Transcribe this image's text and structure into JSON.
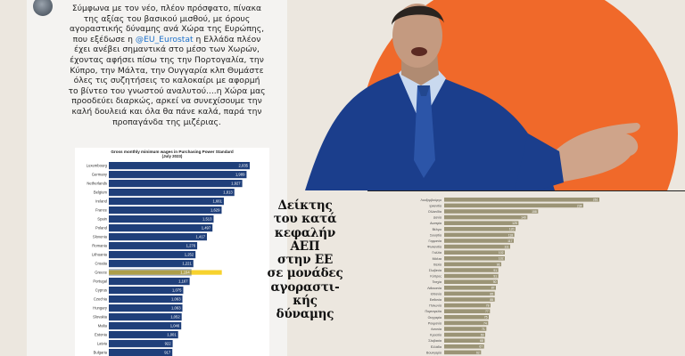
{
  "tweet": {
    "line1": "Σύμφωνα με τον νέο, πλέον πρόσφατο, πίνακα",
    "line2": "της αξίας του βασικού μισθού, με όρους",
    "line3": "αγοραστικής δύναμης ανά Χώρα της Ευρώπης,",
    "line4_pre": "που εξέδωσε η ",
    "link": "@EU_Eurostat",
    "line4_post": " η Ελλάδα πλέον",
    "line5": "έχει ανέβει σημαντικά στο μέσο των Χωρών,",
    "line6": "έχοντας αφήσει πίσω της την Πορτογαλία, την",
    "line7": "Κύπρο, την Μάλτα, την Ουγγαρία κλπ Θυμάστε",
    "line8": "όλες τις συζητήσεις το καλοκαίρι με αφορμή",
    "line9": "το βίντεο του γνωστού αναλυτού....η Χώρα μας",
    "line10": "προοδεύει διαρκώς, αρκεί να συνεχίσουμε την",
    "line11": "καλή δουλειά και όλα θα πάνε καλά, παρά την",
    "line12": "προπαγάνδα της μιζέριας."
  },
  "gdp_title_lines": [
    "Δείκτης",
    "του κατά",
    "κεφαλήν",
    "ΑΕΠ",
    "στην ΕΕ",
    "σε μονάδες",
    "αγοραστι-",
    "κής",
    "δύναμης"
  ],
  "colors": {
    "orange": "#f0692a",
    "bar_blue": "#1f3f7a",
    "highlight": "#f7d22e",
    "gdp_bar": "#9b9476"
  },
  "chart_data": [
    {
      "type": "bar",
      "title": "Gross monthly minimum wages in Purchasing Power Standard",
      "subtitle": "(July 2023)",
      "orientation": "horizontal",
      "categories": [
        "Luxembourg",
        "Germany",
        "Netherlands",
        "Belgium",
        "Ireland",
        "France",
        "Spain",
        "Poland",
        "Slovenia",
        "Romania",
        "Lithuania",
        "Croatia",
        "Greece",
        "Portugal",
        "Cyprus",
        "Czechia",
        "Hungary",
        "Slovakia",
        "Malta",
        "Estonia",
        "Latvia",
        "Bulgaria"
      ],
      "values": [
        2035,
        1989,
        1927,
        1813,
        1661,
        1629,
        1513,
        1497,
        1417,
        1276,
        1252,
        1221,
        1194,
        1167,
        1075,
        1063,
        1063,
        1052,
        1046,
        1001,
        922,
        917
      ],
      "value_labels": [
        "2,035",
        "1,989",
        "1,927",
        "1,813",
        "1,661",
        "1,629",
        "1,513",
        "1,497",
        "1,417",
        "1,276",
        "1,252",
        "1,221",
        "1,194",
        "1,167",
        "1,075",
        "1,063",
        "1,063",
        "1,052",
        "1,046",
        "1,001",
        "922",
        "917"
      ],
      "highlight": "Greece",
      "xlim": [
        0,
        2100
      ]
    },
    {
      "type": "bar",
      "orientation": "horizontal",
      "categories": [
        "Λουξεμβούργο",
        "Ιρλανδία",
        "Ολλανδία",
        "Δανία",
        "Αυστρία",
        "Βέλγιο",
        "Σουηδία",
        "Γερμανία",
        "Φινλανδία",
        "Γαλλία",
        "Μάλτα",
        "Ιταλία",
        "Σλοβενία",
        "Κύπρος",
        "Τσεχία",
        "Λιθουανία",
        "Ισπανία",
        "Εσθονία",
        "Πολωνία",
        "Πορτογαλία",
        "Ουγγαρία",
        "Ρουμανία",
        "Λετονία",
        "Κροατία",
        "Σλοβακία",
        "Ελλάδα",
        "Βουλγαρία"
      ],
      "values": [
        261,
        234,
        158,
        140,
        125,
        120,
        118,
        117,
        111,
        102,
        102,
        96,
        91,
        91,
        90,
        87,
        85,
        85,
        78,
        77,
        75,
        74,
        71,
        69,
        68,
        67,
        62
      ],
      "xlim": [
        0,
        270
      ]
    }
  ]
}
